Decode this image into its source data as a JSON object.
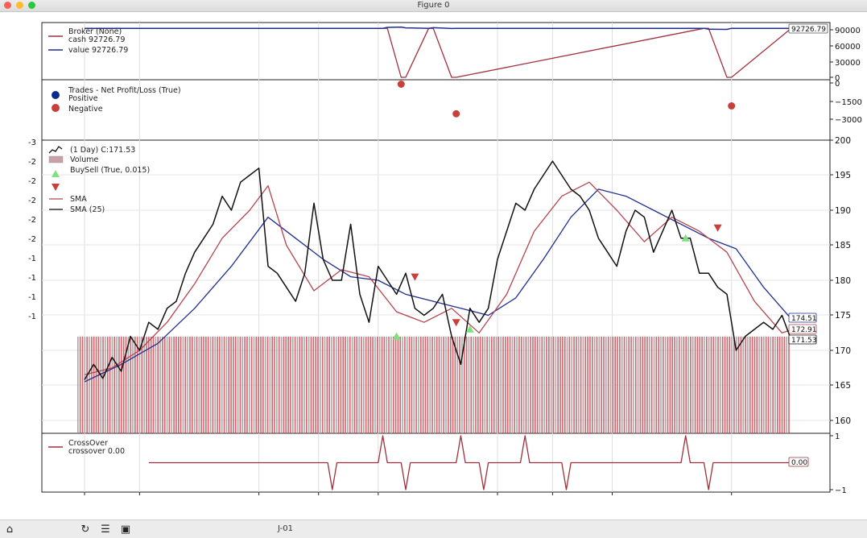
{
  "window": {
    "title": "Figure 0"
  },
  "toolbar": {
    "status_text": "J-01"
  },
  "broker_panel": {
    "legend": [
      "Broker (None)",
      "cash 92726.79",
      "value 92726.79"
    ],
    "last_value_label": "92726.79",
    "yticks": [
      "90000",
      "60000",
      "30000",
      "0"
    ],
    "cash_color": "#a0303c",
    "value_color": "#1f2d8f"
  },
  "trades_panel": {
    "legend": [
      "Trades - Net Profit/Loss (True)",
      "Positive",
      "Negative"
    ],
    "yticks": [
      "0",
      "−1500",
      "−3000"
    ],
    "positive_color": "#0b2a8f",
    "negative_color": "#c8403a"
  },
  "price_panel": {
    "legend": [
      "(1 Day) C:171.53",
      "Volume",
      "BuySell (True, 0.015)",
      "",
      "",
      "SMA",
      "SMA (25)"
    ],
    "left_ticks": [
      "-3",
      "-2",
      "-2",
      "-2",
      "-2",
      "-2",
      "-1",
      "-1",
      "-1",
      "-1"
    ],
    "yticks": [
      "200",
      "195",
      "190",
      "185",
      "180",
      "175",
      "170",
      "165",
      "160"
    ],
    "value_labels": [
      "174.51",
      "172.91",
      "171.53"
    ],
    "close_color": "#111111",
    "sma_fast_color": "#b5444f",
    "sma_slow_color": "#1f2d8f",
    "buy_color": "#7fe07f",
    "sell_color": "#c8403a"
  },
  "crossover_panel": {
    "legend": [
      "CrossOver",
      "crossover 0.00"
    ],
    "yticks": [
      "1",
      "−1"
    ],
    "value_label": "0.00",
    "line_color": "#a0303c"
  },
  "chart_data": [
    {
      "type": "line",
      "title": "Broker (None)",
      "series": [
        {
          "name": "cash 92726.79",
          "x": [
            0,
            65,
            66,
            69,
            70,
            75,
            76,
            80,
            81,
            135,
            136,
            140,
            141,
            154
          ],
          "values": [
            92726.79,
            92726.79,
            92726.79,
            0,
            0,
            92726.79,
            92726.79,
            0,
            0,
            92726.79,
            92726.79,
            0,
            0,
            92726.79
          ]
        },
        {
          "name": "value 92726.79",
          "x": [
            0,
            65,
            66,
            69,
            70,
            75,
            76,
            80,
            81,
            135,
            136,
            140,
            141,
            154
          ],
          "values": [
            92726.79,
            92726.79,
            94500,
            95200,
            93600,
            92726.79,
            93900,
            92400,
            92726.79,
            92726.79,
            91000,
            90800,
            92726.79,
            92726.79
          ]
        }
      ],
      "ylim": [
        0,
        100000
      ]
    },
    {
      "type": "scatter",
      "title": "Trades - Net Profit/Loss (True)",
      "series": [
        {
          "name": "Positive",
          "points": []
        },
        {
          "name": "Negative",
          "points": [
            [
              69,
              -100
            ],
            [
              81,
              -2550
            ],
            [
              141,
              -1900
            ]
          ]
        }
      ],
      "ylim": [
        -3500,
        200
      ]
    },
    {
      "type": "line",
      "title": "(1 Day) C:171.53",
      "series": [
        {
          "name": "(1 Day) C:171.53",
          "x": [
            0,
            2,
            4,
            6,
            8,
            10,
            12,
            14,
            16,
            18,
            20,
            22,
            24,
            26,
            28,
            30,
            32,
            34,
            36,
            38,
            40,
            42,
            44,
            46,
            48,
            50,
            52,
            54,
            56,
            58,
            60,
            62,
            64,
            66,
            68,
            70,
            72,
            74,
            76,
            78,
            80,
            82,
            84,
            86,
            88,
            90,
            92,
            94,
            96,
            98,
            100,
            102,
            104,
            106,
            108,
            110,
            112,
            114,
            116,
            118,
            120,
            122,
            124,
            126,
            128,
            130,
            132,
            134,
            136,
            138,
            140,
            142,
            144,
            146,
            148,
            150,
            152,
            154
          ],
          "values": [
            165.8,
            168,
            166,
            169,
            167,
            172,
            170,
            174,
            173,
            176,
            177,
            181,
            184,
            186,
            188,
            192,
            190,
            194,
            195,
            196,
            182,
            181,
            179,
            177,
            181,
            191,
            183,
            180,
            180,
            188,
            178,
            174,
            182,
            180,
            178,
            181,
            176,
            175,
            176,
            178,
            172,
            168,
            176,
            174,
            176,
            183,
            187,
            191,
            190,
            193,
            195,
            197,
            195,
            193,
            192,
            190,
            186,
            184,
            182,
            187,
            190,
            189,
            184,
            187,
            190,
            186,
            186,
            181,
            181,
            179,
            178,
            170,
            172,
            173,
            174,
            173,
            175,
            171.5
          ]
        },
        {
          "name": "SMA",
          "x": [
            0,
            6,
            12,
            18,
            24,
            30,
            36,
            40,
            44,
            50,
            56,
            62,
            68,
            74,
            80,
            86,
            92,
            98,
            104,
            110,
            116,
            122,
            128,
            134,
            140,
            146,
            152,
            154
          ],
          "values": [
            166.5,
            167.5,
            170,
            174,
            179.5,
            186,
            190,
            193.5,
            185,
            178.5,
            181.5,
            180.5,
            175.5,
            174,
            176,
            172.5,
            178,
            187,
            192,
            194,
            190,
            185.5,
            189,
            187,
            184,
            177,
            172.5,
            172.91
          ]
        },
        {
          "name": "SMA (25)",
          "x": [
            0,
            8,
            16,
            24,
            32,
            40,
            46,
            52,
            58,
            64,
            70,
            76,
            82,
            88,
            94,
            100,
            106,
            112,
            118,
            124,
            130,
            136,
            142,
            148,
            154
          ],
          "values": [
            165.5,
            168,
            171,
            176,
            182,
            189,
            186,
            183,
            180.5,
            180,
            178,
            177,
            176,
            175,
            177.5,
            183,
            189,
            193,
            192,
            190,
            188,
            186,
            184.5,
            179,
            174.51
          ]
        }
      ],
      "buy_signals": [
        [
          68,
          172
        ],
        [
          84,
          173
        ],
        [
          131,
          186
        ]
      ],
      "sell_signals": [
        [
          72,
          180.5
        ],
        [
          81,
          174
        ],
        [
          138,
          187.5
        ]
      ],
      "volume_color_bars": [
        "#c84a55",
        "#9a9a9a"
      ],
      "ylim": [
        158,
        200
      ]
    },
    {
      "type": "line",
      "title": "CrossOver",
      "series": [
        {
          "name": "crossover 0.00",
          "x": [
            14,
            53,
            54,
            55,
            64,
            65,
            66,
            69,
            70,
            71,
            81,
            82,
            83,
            86,
            87,
            88,
            95,
            96,
            97,
            104,
            105,
            106,
            130,
            131,
            132,
            135,
            136,
            137,
            154
          ],
          "values": [
            0,
            0,
            -1,
            0,
            0,
            1,
            0,
            0,
            -1,
            0,
            0,
            1,
            0,
            0,
            -1,
            0,
            0,
            1,
            0,
            0,
            -1,
            0,
            0,
            1,
            0,
            0,
            -1,
            0,
            0
          ]
        }
      ],
      "ylim": [
        -1,
        1
      ]
    }
  ]
}
